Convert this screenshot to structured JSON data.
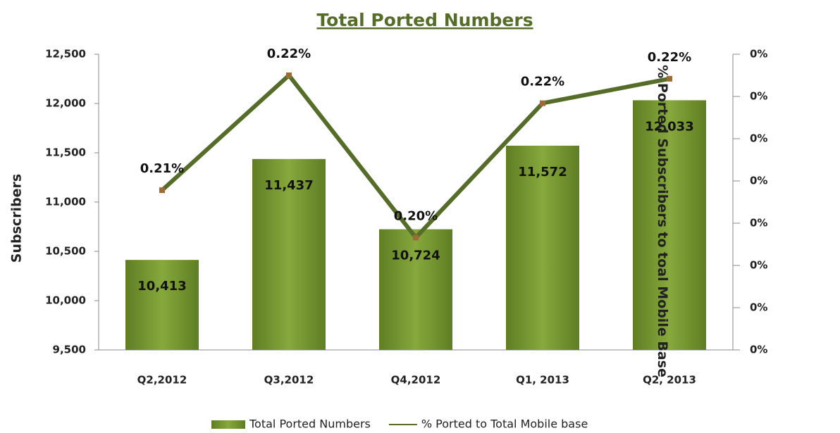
{
  "chart_data": {
    "type": "bar",
    "title": "Total Ported Numbers",
    "ylabel": "Subscribers",
    "y2label": "% Ported Subscribers to toal Mobile Base",
    "categories": [
      "Q2,2012",
      "Q3,2012",
      "Q4,2012",
      "Q1, 2013",
      "Q2, 2013"
    ],
    "series": [
      {
        "name": "Total Ported Numbers",
        "type": "bar",
        "color": "#739530",
        "values": [
          10413,
          11437,
          10724,
          11572,
          12033
        ],
        "value_labels": [
          "10,413",
          "11,437",
          "10,724",
          "11,572",
          "12,033"
        ]
      },
      {
        "name": "% Ported to Total Mobile base",
        "type": "line",
        "axis": "y2",
        "color": "#566d2a",
        "values": [
          0.2089,
          0.2225,
          0.2033,
          0.2192,
          0.2221
        ],
        "value_labels": [
          "0.21%",
          "0.22%",
          "0.20%",
          "0.22%",
          "0.22%"
        ]
      }
    ],
    "ylim": [
      9500,
      12500
    ],
    "yticks": [
      {
        "value": 9500,
        "label": "9,500"
      },
      {
        "value": 10000,
        "label": "10,000"
      },
      {
        "value": 10500,
        "label": "10,500"
      },
      {
        "value": 11000,
        "label": "11,000"
      },
      {
        "value": 11500,
        "label": "11,500"
      },
      {
        "value": 12000,
        "label": "12,000"
      },
      {
        "value": 12500,
        "label": "12,500"
      }
    ],
    "y2lim": [
      0.19,
      0.225
    ],
    "y2ticks": [
      {
        "value": 0.19,
        "label": "0%"
      },
      {
        "value": 0.195,
        "label": "0%"
      },
      {
        "value": 0.2,
        "label": "0%"
      },
      {
        "value": 0.205,
        "label": "0%"
      },
      {
        "value": 0.21,
        "label": "0%"
      },
      {
        "value": 0.215,
        "label": "0%"
      },
      {
        "value": 0.22,
        "label": "0%"
      },
      {
        "value": 0.225,
        "label": "0%"
      }
    ],
    "legend": "bottom"
  }
}
